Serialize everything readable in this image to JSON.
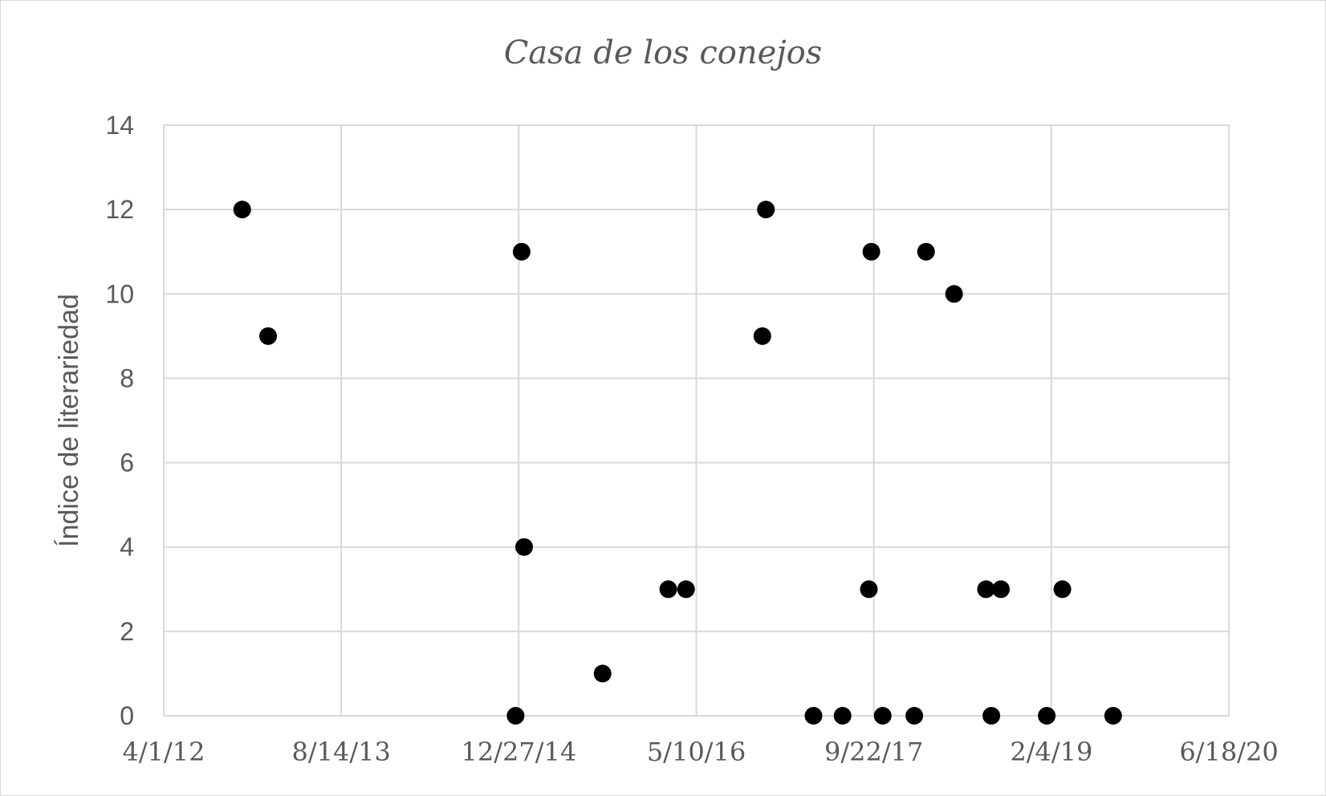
{
  "chart_data": {
    "type": "scatter",
    "title": "Casa de los conejos",
    "xlabel": "",
    "ylabel": "Índice de literariedad",
    "x_ticks": [
      "4/1/12",
      "8/14/13",
      "12/27/14",
      "5/10/16",
      "9/22/17",
      "2/4/19",
      "6/18/20"
    ],
    "y_ticks": [
      "0",
      "2",
      "4",
      "6",
      "8",
      "10",
      "12",
      "14"
    ],
    "xlim": [
      "2012-04-01",
      "2020-06-18"
    ],
    "ylim": [
      0,
      14
    ],
    "grid": true,
    "legend": "none",
    "marker_color": "#000000",
    "points": [
      {
        "x": "2012-11-08",
        "y": 12
      },
      {
        "x": "2013-01-20",
        "y": 9
      },
      {
        "x": "2014-12-18",
        "y": 0
      },
      {
        "x": "2015-01-11",
        "y": 4
      },
      {
        "x": "2015-01-04",
        "y": 11
      },
      {
        "x": "2015-08-20",
        "y": 1
      },
      {
        "x": "2016-02-21",
        "y": 3
      },
      {
        "x": "2016-04-11",
        "y": 3
      },
      {
        "x": "2016-11-12",
        "y": 9
      },
      {
        "x": "2016-11-22",
        "y": 12
      },
      {
        "x": "2017-04-05",
        "y": 0
      },
      {
        "x": "2017-06-26",
        "y": 0
      },
      {
        "x": "2017-09-08",
        "y": 3
      },
      {
        "x": "2017-09-15",
        "y": 11
      },
      {
        "x": "2017-10-17",
        "y": 0
      },
      {
        "x": "2018-01-14",
        "y": 0
      },
      {
        "x": "2018-02-16",
        "y": 11
      },
      {
        "x": "2018-05-06",
        "y": 10
      },
      {
        "x": "2018-08-04",
        "y": 3
      },
      {
        "x": "2018-08-19",
        "y": 0
      },
      {
        "x": "2018-09-15",
        "y": 3
      },
      {
        "x": "2019-01-22",
        "y": 0
      },
      {
        "x": "2019-03-07",
        "y": 3
      },
      {
        "x": "2019-07-28",
        "y": 0
      }
    ]
  }
}
